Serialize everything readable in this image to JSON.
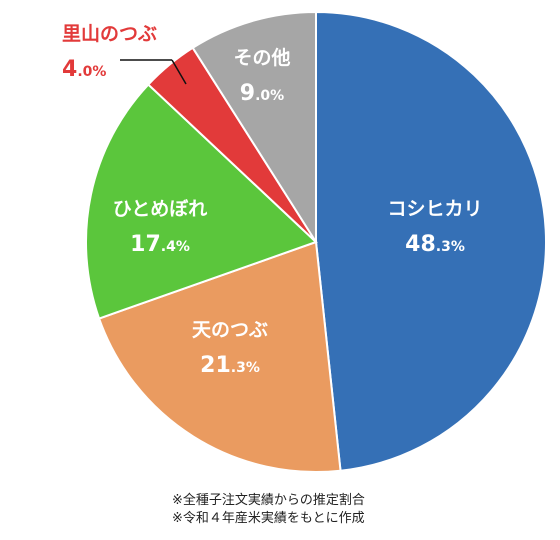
{
  "chart_data": {
    "type": "pie",
    "title": "",
    "categories": [
      "コシヒカリ",
      "天のつぶ",
      "ひとめぼれ",
      "里山のつぶ",
      "その他"
    ],
    "values": [
      48.3,
      21.3,
      17.4,
      4.0,
      9.0
    ],
    "percent_labels": [
      {
        "int": "48",
        "dec": ".3%"
      },
      {
        "int": "21",
        "dec": ".3%"
      },
      {
        "int": "17",
        "dec": ".4%"
      },
      {
        "int": "4",
        "dec": ".0%"
      },
      {
        "int": "9",
        "dec": ".0%"
      }
    ],
    "colors": [
      "#3570b6",
      "#ea9b60",
      "#5bc63c",
      "#e23a3a",
      "#a6a6a6"
    ],
    "label_colors": [
      "#ffffff",
      "#ffffff",
      "#ffffff",
      "#e23a3a",
      "#ffffff"
    ],
    "start": "12 o'clock",
    "direction": "clockwise"
  },
  "notes": [
    "※全種子注文実績からの推定割合",
    "※令和４年産米実績をもとに作成"
  ]
}
